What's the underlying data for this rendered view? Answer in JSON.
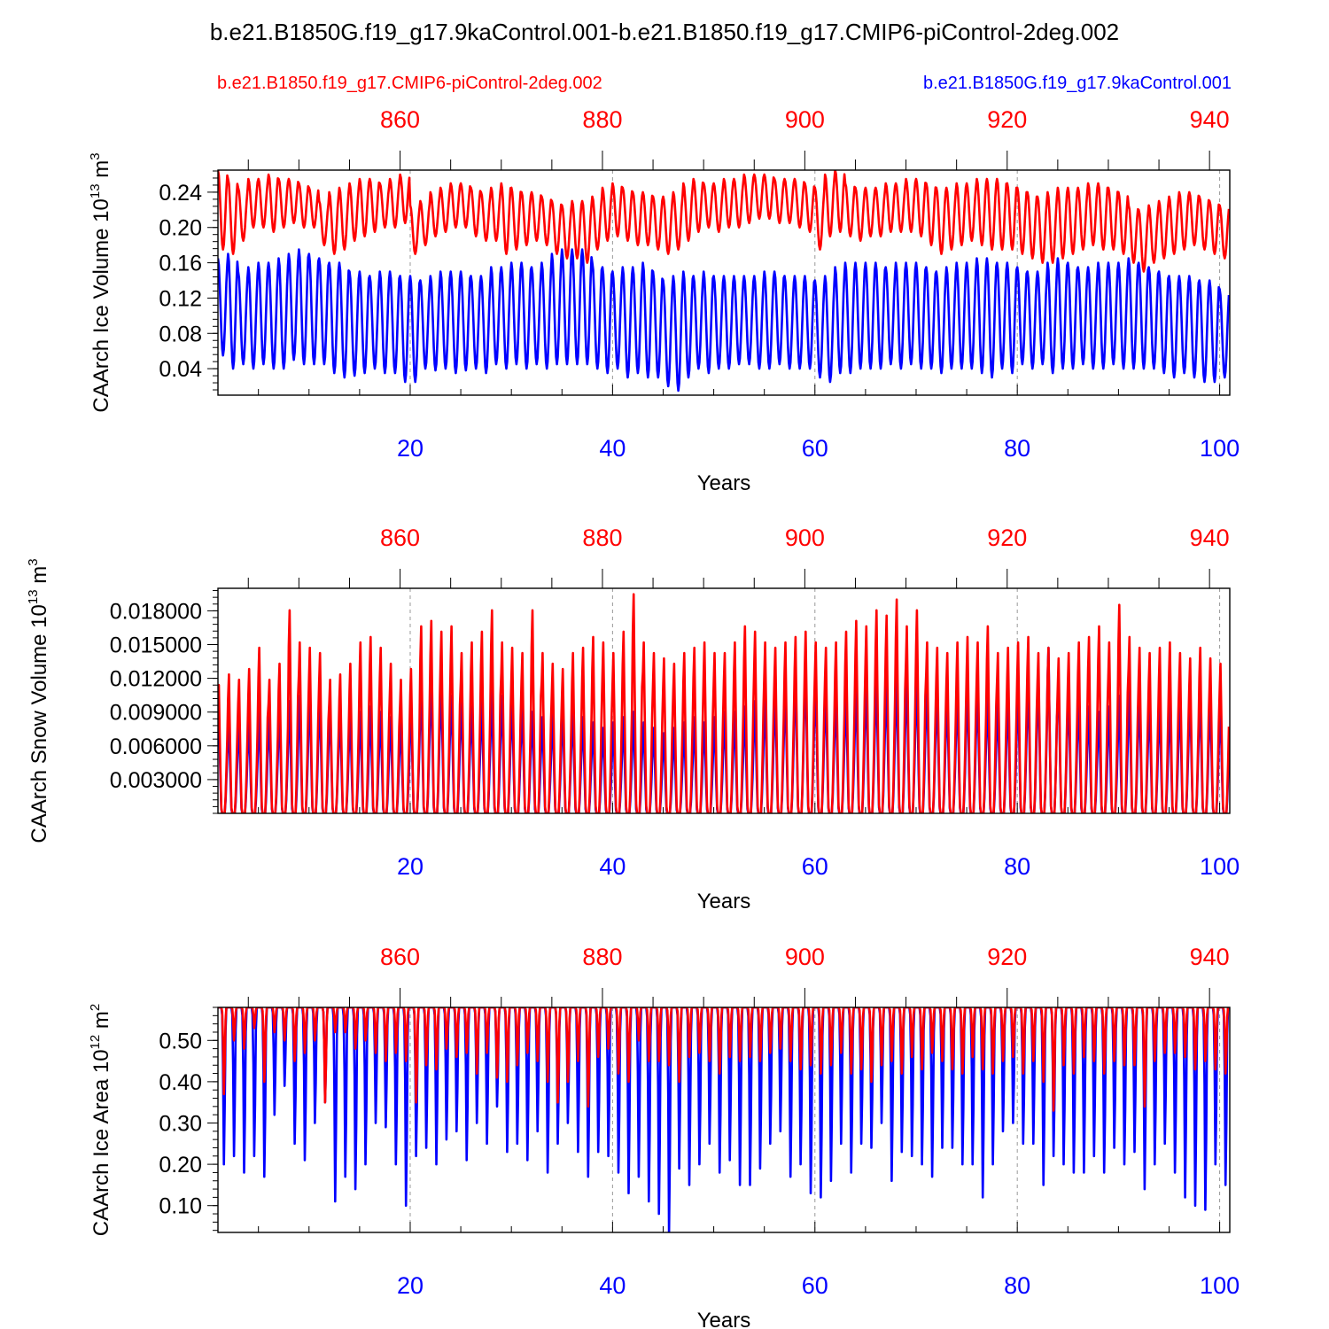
{
  "figure": {
    "title": "b.e21.B1850G.f19_g17.9kaControl.001-b.e21.B1850.f19_g17.CMIP6-piControl-2deg.002",
    "legend_ctrl": "b.e21.B1850.f19_g17.CMIP6-piControl-2deg.002",
    "legend_case": "b.e21.B1850G.f19_g17.9kaControl.001",
    "ctrl_color": "#ff0000",
    "case_color": "#0000ff"
  },
  "chart_data": [
    {
      "type": "line",
      "ylabel": "CAArch Ice Volume 10",
      "ylabel_exp": "13",
      "ylabel_unit": " m",
      "ylabel_unit_exp": "3",
      "xlabel": "Years",
      "xlim": [
        1,
        101
      ],
      "ylim": [
        0.01,
        0.265
      ],
      "yticks": [
        0.04,
        0.08,
        0.12,
        0.16,
        0.2,
        0.24
      ],
      "ytick_labels": [
        "0.04",
        "0.08",
        "0.12",
        "0.16",
        "0.20",
        "0.24"
      ],
      "xticks_bottom": [
        20,
        40,
        60,
        80,
        100
      ],
      "xtick_labels_bottom": [
        "20",
        "40",
        "60",
        "80",
        "100"
      ],
      "xticks_top_years": [
        860,
        880,
        900,
        920,
        940
      ],
      "xtick_labels_top": [
        "860",
        "880",
        "900",
        "920",
        "940"
      ],
      "top_axis_offset": 841,
      "series": [
        {
          "name": "b.e21.B1850G.f19_g17.9kaControl.001",
          "color": "#0000ff",
          "kind": "sin",
          "annual_min": [
            0.055,
            0.04,
            0.045,
            0.04,
            0.045,
            0.04,
            0.04,
            0.05,
            0.045,
            0.045,
            0.045,
            0.035,
            0.03,
            0.032,
            0.035,
            0.04,
            0.035,
            0.035,
            0.025,
            0.025,
            0.04,
            0.038,
            0.04,
            0.035,
            0.038,
            0.04,
            0.035,
            0.045,
            0.04,
            0.045,
            0.04,
            0.045,
            0.04,
            0.045,
            0.045,
            0.045,
            0.045,
            0.04,
            0.035,
            0.04,
            0.03,
            0.035,
            0.03,
            0.03,
            0.02,
            0.015,
            0.03,
            0.04,
            0.035,
            0.04,
            0.04,
            0.045,
            0.045,
            0.04,
            0.04,
            0.045,
            0.04,
            0.04,
            0.04,
            0.03,
            0.025,
            0.035,
            0.035,
            0.04,
            0.04,
            0.04,
            0.045,
            0.04,
            0.045,
            0.04,
            0.04,
            0.035,
            0.04,
            0.04,
            0.04,
            0.035,
            0.03,
            0.04,
            0.035,
            0.045,
            0.04,
            0.045,
            0.035,
            0.04,
            0.04,
            0.045,
            0.04,
            0.04,
            0.045,
            0.04,
            0.04,
            0.04,
            0.04,
            0.035,
            0.03,
            0.035,
            0.03,
            0.025,
            0.025,
            0.03
          ],
          "annual_max": [
            0.165,
            0.17,
            0.15,
            0.155,
            0.16,
            0.16,
            0.165,
            0.17,
            0.175,
            0.17,
            0.165,
            0.16,
            0.16,
            0.15,
            0.15,
            0.145,
            0.15,
            0.15,
            0.145,
            0.145,
            0.14,
            0.145,
            0.15,
            0.15,
            0.15,
            0.145,
            0.145,
            0.155,
            0.155,
            0.16,
            0.16,
            0.155,
            0.16,
            0.17,
            0.175,
            0.175,
            0.175,
            0.16,
            0.155,
            0.15,
            0.155,
            0.155,
            0.16,
            0.15,
            0.14,
            0.145,
            0.15,
            0.145,
            0.15,
            0.145,
            0.145,
            0.145,
            0.145,
            0.145,
            0.15,
            0.15,
            0.145,
            0.145,
            0.145,
            0.14,
            0.145,
            0.155,
            0.16,
            0.16,
            0.16,
            0.16,
            0.155,
            0.16,
            0.16,
            0.16,
            0.155,
            0.15,
            0.155,
            0.16,
            0.16,
            0.165,
            0.165,
            0.16,
            0.16,
            0.155,
            0.15,
            0.15,
            0.16,
            0.165,
            0.16,
            0.155,
            0.155,
            0.16,
            0.16,
            0.16,
            0.165,
            0.16,
            0.155,
            0.15,
            0.145,
            0.145,
            0.145,
            0.14,
            0.14,
            0.13
          ]
        },
        {
          "name": "b.e21.B1850.f19_g17.CMIP6-piControl-2deg.002",
          "color": "#ff0000",
          "kind": "sin",
          "annual_min": [
            0.175,
            0.17,
            0.185,
            0.2,
            0.2,
            0.195,
            0.2,
            0.205,
            0.2,
            0.2,
            0.18,
            0.17,
            0.175,
            0.185,
            0.19,
            0.195,
            0.2,
            0.2,
            0.205,
            0.17,
            0.18,
            0.19,
            0.195,
            0.2,
            0.2,
            0.19,
            0.185,
            0.185,
            0.17,
            0.175,
            0.18,
            0.185,
            0.18,
            0.17,
            0.165,
            0.165,
            0.16,
            0.175,
            0.185,
            0.19,
            0.185,
            0.18,
            0.18,
            0.175,
            0.17,
            0.175,
            0.185,
            0.195,
            0.2,
            0.195,
            0.2,
            0.2,
            0.205,
            0.21,
            0.21,
            0.205,
            0.205,
            0.2,
            0.195,
            0.175,
            0.19,
            0.195,
            0.19,
            0.185,
            0.19,
            0.19,
            0.195,
            0.195,
            0.195,
            0.19,
            0.18,
            0.17,
            0.175,
            0.18,
            0.185,
            0.18,
            0.175,
            0.175,
            0.175,
            0.17,
            0.165,
            0.16,
            0.16,
            0.165,
            0.17,
            0.175,
            0.18,
            0.175,
            0.175,
            0.17,
            0.16,
            0.15,
            0.16,
            0.165,
            0.17,
            0.175,
            0.18,
            0.175,
            0.17,
            0.165
          ],
          "annual_max": [
            0.265,
            0.255,
            0.245,
            0.255,
            0.255,
            0.26,
            0.255,
            0.255,
            0.25,
            0.245,
            0.23,
            0.24,
            0.245,
            0.25,
            0.255,
            0.255,
            0.25,
            0.255,
            0.26,
            0.225,
            0.23,
            0.24,
            0.245,
            0.25,
            0.25,
            0.245,
            0.24,
            0.245,
            0.25,
            0.245,
            0.24,
            0.24,
            0.235,
            0.23,
            0.225,
            0.23,
            0.23,
            0.235,
            0.245,
            0.25,
            0.245,
            0.24,
            0.24,
            0.235,
            0.235,
            0.24,
            0.25,
            0.255,
            0.25,
            0.25,
            0.255,
            0.255,
            0.26,
            0.26,
            0.26,
            0.255,
            0.255,
            0.255,
            0.25,
            0.245,
            0.26,
            0.265,
            0.25,
            0.245,
            0.245,
            0.245,
            0.25,
            0.25,
            0.255,
            0.255,
            0.25,
            0.245,
            0.245,
            0.25,
            0.25,
            0.255,
            0.255,
            0.255,
            0.25,
            0.245,
            0.24,
            0.235,
            0.24,
            0.245,
            0.245,
            0.245,
            0.25,
            0.25,
            0.245,
            0.24,
            0.225,
            0.22,
            0.225,
            0.23,
            0.235,
            0.24,
            0.24,
            0.235,
            0.23,
            0.225
          ]
        }
      ]
    },
    {
      "type": "line",
      "ylabel": "CAArch Snow Volume 10",
      "ylabel_exp": "13",
      "ylabel_unit": " m",
      "ylabel_unit_exp": "3",
      "xlabel": "Years",
      "xlim": [
        1,
        101
      ],
      "ylim": [
        0,
        0.02
      ],
      "yticks": [
        0.003,
        0.006,
        0.009,
        0.012,
        0.015,
        0.018
      ],
      "ytick_labels": [
        "0.003000",
        "0.006000",
        "0.009000",
        "0.012000",
        "0.015000",
        "0.018000"
      ],
      "xticks_bottom": [
        20,
        40,
        60,
        80,
        100
      ],
      "xtick_labels_bottom": [
        "20",
        "40",
        "60",
        "80",
        "100"
      ],
      "xticks_top_years": [
        860,
        880,
        900,
        920,
        940
      ],
      "xtick_labels_top": [
        "860",
        "880",
        "900",
        "920",
        "940"
      ],
      "top_axis_offset": 841,
      "series": [
        {
          "name": "b.e21.B1850G.f19_g17.9kaControl.001",
          "color": "#0000ff",
          "kind": "snow",
          "annual_peak": [
            0.0095,
            0.0085,
            0.009,
            0.0085,
            0.0095,
            0.009,
            0.01,
            0.0105,
            0.011,
            0.0115,
            0.0105,
            0.01,
            0.0095,
            0.009,
            0.0095,
            0.01,
            0.0095,
            0.009,
            0.0085,
            0.011,
            0.0125,
            0.013,
            0.012,
            0.011,
            0.0105,
            0.01,
            0.011,
            0.0115,
            0.011,
            0.0105,
            0.01,
            0.0095,
            0.009,
            0.0095,
            0.01,
            0.0095,
            0.009,
            0.0085,
            0.008,
            0.0085,
            0.009,
            0.0095,
            0.0085,
            0.008,
            0.0075,
            0.008,
            0.0085,
            0.009,
            0.0085,
            0.009,
            0.0095,
            0.0095,
            0.01,
            0.0105,
            0.011,
            0.0115,
            0.012,
            0.014,
            0.0135,
            0.012,
            0.0115,
            0.011,
            0.0115,
            0.012,
            0.0125,
            0.013,
            0.0125,
            0.013,
            0.013,
            0.0125,
            0.012,
            0.0115,
            0.011,
            0.0115,
            0.012,
            0.0115,
            0.011,
            0.0105,
            0.011,
            0.012,
            0.0125,
            0.013,
            0.0155,
            0.012,
            0.011,
            0.0105,
            0.01,
            0.0095,
            0.01,
            0.011,
            0.0115,
            0.011,
            0.0105,
            0.01,
            0.0105,
            0.011,
            0.0115,
            0.011,
            0.0105,
            0.01
          ]
        },
        {
          "name": "b.e21.B1850.f19_g17.CMIP6-piControl-2deg.002",
          "color": "#ff0000",
          "kind": "snow",
          "annual_peak": [
            0.012,
            0.013,
            0.0125,
            0.0135,
            0.0155,
            0.0125,
            0.014,
            0.019,
            0.016,
            0.0155,
            0.015,
            0.0125,
            0.013,
            0.014,
            0.016,
            0.0165,
            0.0155,
            0.014,
            0.0125,
            0.0135,
            0.0175,
            0.018,
            0.017,
            0.0175,
            0.015,
            0.016,
            0.017,
            0.019,
            0.016,
            0.0155,
            0.015,
            0.019,
            0.015,
            0.014,
            0.0135,
            0.015,
            0.0155,
            0.0165,
            0.016,
            0.015,
            0.017,
            0.0205,
            0.016,
            0.015,
            0.0145,
            0.014,
            0.015,
            0.0155,
            0.016,
            0.015,
            0.015,
            0.016,
            0.0175,
            0.017,
            0.016,
            0.0155,
            0.016,
            0.0165,
            0.017,
            0.016,
            0.0155,
            0.016,
            0.017,
            0.018,
            0.0175,
            0.019,
            0.0185,
            0.02,
            0.0175,
            0.019,
            0.016,
            0.0155,
            0.015,
            0.016,
            0.0165,
            0.016,
            0.0175,
            0.015,
            0.0155,
            0.016,
            0.0165,
            0.015,
            0.0155,
            0.0145,
            0.015,
            0.016,
            0.0165,
            0.0175,
            0.016,
            0.0195,
            0.0165,
            0.0155,
            0.015,
            0.0155,
            0.016,
            0.015,
            0.0145,
            0.0155,
            0.0145,
            0.014
          ]
        }
      ]
    },
    {
      "type": "line",
      "ylabel": "CAArch Ice Area 10",
      "ylabel_exp": "12",
      "ylabel_unit": " m",
      "ylabel_unit_exp": "2",
      "xlabel": "Years",
      "xlim": [
        1,
        101
      ],
      "ylim": [
        0.035,
        0.58
      ],
      "yticks": [
        0.1,
        0.2,
        0.3,
        0.4,
        0.5
      ],
      "ytick_labels": [
        "0.10",
        "0.20",
        "0.30",
        "0.40",
        "0.50"
      ],
      "xticks_bottom": [
        20,
        40,
        60,
        80,
        100
      ],
      "xtick_labels_bottom": [
        "20",
        "40",
        "60",
        "80",
        "100"
      ],
      "xticks_top_years": [
        860,
        880,
        900,
        920,
        940
      ],
      "xtick_labels_top": [
        "860",
        "880",
        "900",
        "920",
        "940"
      ],
      "top_axis_offset": 841,
      "series": [
        {
          "name": "b.e21.B1850G.f19_g17.9kaControl.001",
          "color": "#0000ff",
          "kind": "area",
          "plateau": 0.58,
          "annual_min": [
            0.2,
            0.22,
            0.18,
            0.22,
            0.17,
            0.32,
            0.39,
            0.25,
            0.21,
            0.3,
            0.35,
            0.11,
            0.17,
            0.14,
            0.2,
            0.3,
            0.29,
            0.2,
            0.1,
            0.22,
            0.24,
            0.2,
            0.26,
            0.28,
            0.21,
            0.3,
            0.25,
            0.34,
            0.23,
            0.25,
            0.21,
            0.28,
            0.18,
            0.25,
            0.3,
            0.23,
            0.17,
            0.23,
            0.22,
            0.18,
            0.13,
            0.17,
            0.11,
            0.08,
            0.03,
            0.19,
            0.15,
            0.2,
            0.25,
            0.18,
            0.21,
            0.15,
            0.15,
            0.19,
            0.25,
            0.28,
            0.17,
            0.2,
            0.13,
            0.12,
            0.16,
            0.25,
            0.18,
            0.25,
            0.24,
            0.3,
            0.16,
            0.23,
            0.22,
            0.2,
            0.17,
            0.24,
            0.24,
            0.2,
            0.2,
            0.12,
            0.2,
            0.28,
            0.3,
            0.25,
            0.25,
            0.15,
            0.22,
            0.2,
            0.18,
            0.18,
            0.22,
            0.18,
            0.24,
            0.2,
            0.23,
            0.14,
            0.2,
            0.25,
            0.18,
            0.12,
            0.1,
            0.09,
            0.2,
            0.15
          ]
        },
        {
          "name": "b.e21.B1850.f19_g17.CMIP6-piControl-2deg.002",
          "color": "#ff0000",
          "kind": "area",
          "plateau": 0.58,
          "annual_min": [
            0.37,
            0.5,
            0.48,
            0.53,
            0.4,
            0.52,
            0.5,
            0.45,
            0.47,
            0.5,
            0.35,
            0.52,
            0.52,
            0.48,
            0.5,
            0.47,
            0.45,
            0.47,
            0.45,
            0.35,
            0.44,
            0.43,
            0.48,
            0.46,
            0.47,
            0.42,
            0.47,
            0.41,
            0.4,
            0.44,
            0.47,
            0.45,
            0.4,
            0.35,
            0.4,
            0.45,
            0.34,
            0.46,
            0.48,
            0.42,
            0.4,
            0.5,
            0.45,
            0.45,
            0.44,
            0.4,
            0.46,
            0.47,
            0.45,
            0.42,
            0.46,
            0.45,
            0.46,
            0.45,
            0.47,
            0.48,
            0.45,
            0.43,
            0.44,
            0.42,
            0.44,
            0.47,
            0.42,
            0.43,
            0.4,
            0.44,
            0.45,
            0.42,
            0.46,
            0.43,
            0.47,
            0.45,
            0.43,
            0.42,
            0.46,
            0.43,
            0.42,
            0.45,
            0.46,
            0.42,
            0.45,
            0.4,
            0.33,
            0.44,
            0.42,
            0.46,
            0.45,
            0.42,
            0.45,
            0.44,
            0.44,
            0.34,
            0.45,
            0.47,
            0.47,
            0.46,
            0.43,
            0.45,
            0.43,
            0.42
          ]
        }
      ]
    }
  ]
}
